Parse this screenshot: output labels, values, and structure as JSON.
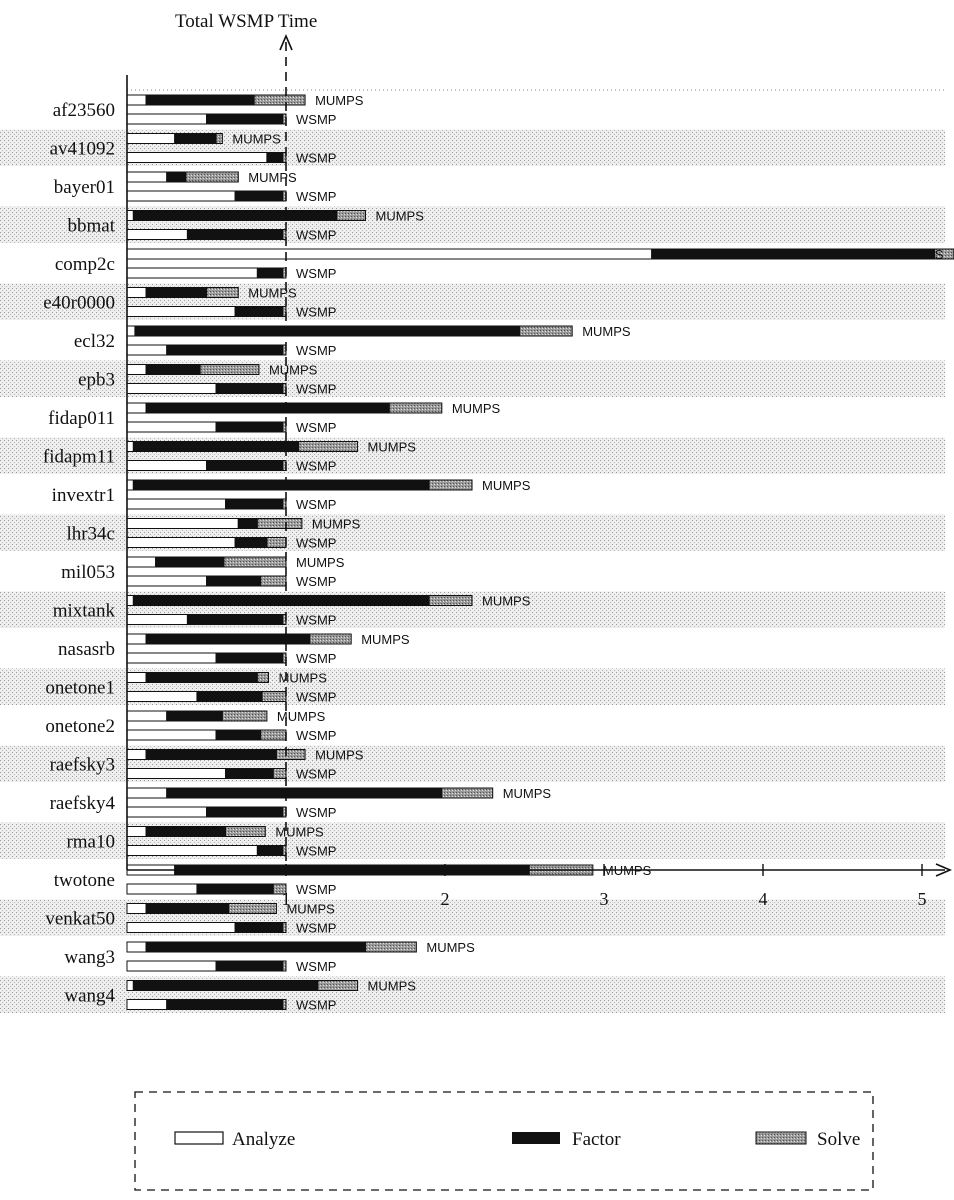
{
  "chart_data": {
    "type": "bar",
    "title": "Total WSMP Time",
    "xticks": [
      "1",
      "2",
      "3",
      "4",
      "5"
    ],
    "xlim": [
      0,
      5.2
    ],
    "solver_labels": [
      "MUMPS",
      "WSMP"
    ],
    "legend": [
      "Analyze",
      "Factor",
      "Solve"
    ],
    "colors": {
      "analyze": "#ffffff",
      "factor": "#111111",
      "solve": "#8c8c8c",
      "band": "#e3e3e3"
    },
    "categories": [
      {
        "name": "af23560",
        "shaded": false,
        "mumps": [
          0.12,
          0.68,
          0.32
        ],
        "wsmp": [
          0.5,
          0.48,
          0.02
        ]
      },
      {
        "name": "av41092",
        "shaded": true,
        "mumps": [
          0.3,
          0.26,
          0.04
        ],
        "wsmp": [
          0.88,
          0.1,
          0.02
        ]
      },
      {
        "name": "bayer01",
        "shaded": false,
        "mumps": [
          0.25,
          0.12,
          0.33
        ],
        "wsmp": [
          0.68,
          0.3,
          0.02
        ]
      },
      {
        "name": "bbmat",
        "shaded": true,
        "mumps": [
          0.04,
          1.28,
          0.18
        ],
        "wsmp": [
          0.38,
          0.6,
          0.02
        ]
      },
      {
        "name": "comp2c",
        "shaded": false,
        "mumps": [
          3.3,
          1.78,
          0.12
        ],
        "wsmp": [
          0.82,
          0.16,
          0.02
        ]
      },
      {
        "name": "e40r0000",
        "shaded": true,
        "mumps": [
          0.12,
          0.38,
          0.2
        ],
        "wsmp": [
          0.68,
          0.3,
          0.02
        ]
      },
      {
        "name": "ecl32",
        "shaded": false,
        "mumps": [
          0.05,
          2.42,
          0.33
        ],
        "wsmp": [
          0.25,
          0.73,
          0.02
        ]
      },
      {
        "name": "epb3",
        "shaded": true,
        "mumps": [
          0.12,
          0.34,
          0.37
        ],
        "wsmp": [
          0.56,
          0.42,
          0.02
        ]
      },
      {
        "name": "fidap011",
        "shaded": false,
        "mumps": [
          0.12,
          1.53,
          0.33
        ],
        "wsmp": [
          0.56,
          0.42,
          0.02
        ]
      },
      {
        "name": "fidapm11",
        "shaded": true,
        "mumps": [
          0.04,
          1.04,
          0.37
        ],
        "wsmp": [
          0.5,
          0.48,
          0.02
        ]
      },
      {
        "name": "invextr1",
        "shaded": false,
        "mumps": [
          0.04,
          1.86,
          0.27
        ],
        "wsmp": [
          0.62,
          0.36,
          0.02
        ]
      },
      {
        "name": "lhr34c",
        "shaded": true,
        "mumps": [
          0.7,
          0.12,
          0.28
        ],
        "wsmp": [
          0.68,
          0.2,
          0.12
        ]
      },
      {
        "name": "mil053",
        "shaded": false,
        "mumps": [
          0.18,
          0.43,
          0.39
        ],
        "wsmp": [
          0.5,
          0.34,
          0.16
        ]
      },
      {
        "name": "mixtank",
        "shaded": true,
        "mumps": [
          0.04,
          1.86,
          0.27
        ],
        "wsmp": [
          0.38,
          0.6,
          0.02
        ]
      },
      {
        "name": "nasasrb",
        "shaded": false,
        "mumps": [
          0.12,
          1.03,
          0.26
        ],
        "wsmp": [
          0.56,
          0.42,
          0.02
        ]
      },
      {
        "name": "onetone1",
        "shaded": true,
        "mumps": [
          0.12,
          0.7,
          0.07
        ],
        "wsmp": [
          0.44,
          0.41,
          0.15
        ]
      },
      {
        "name": "onetone2",
        "shaded": false,
        "mumps": [
          0.25,
          0.35,
          0.28
        ],
        "wsmp": [
          0.56,
          0.28,
          0.16
        ]
      },
      {
        "name": "raefsky3",
        "shaded": true,
        "mumps": [
          0.12,
          0.82,
          0.18
        ],
        "wsmp": [
          0.62,
          0.3,
          0.08
        ]
      },
      {
        "name": "raefsky4",
        "shaded": false,
        "mumps": [
          0.25,
          1.73,
          0.32
        ],
        "wsmp": [
          0.5,
          0.48,
          0.02
        ]
      },
      {
        "name": "rma10",
        "shaded": true,
        "mumps": [
          0.12,
          0.5,
          0.25
        ],
        "wsmp": [
          0.82,
          0.16,
          0.02
        ]
      },
      {
        "name": "twotone",
        "shaded": false,
        "mumps": [
          0.3,
          2.23,
          0.4
        ],
        "wsmp": [
          0.44,
          0.48,
          0.08
        ]
      },
      {
        "name": "venkat50",
        "shaded": true,
        "mumps": [
          0.12,
          0.52,
          0.3
        ],
        "wsmp": [
          0.68,
          0.3,
          0.02
        ]
      },
      {
        "name": "wang3",
        "shaded": false,
        "mumps": [
          0.12,
          1.38,
          0.32
        ],
        "wsmp": [
          0.56,
          0.42,
          0.02
        ]
      },
      {
        "name": "wang4",
        "shaded": true,
        "mumps": [
          0.04,
          1.16,
          0.25
        ],
        "wsmp": [
          0.25,
          0.73,
          0.02
        ]
      }
    ]
  }
}
